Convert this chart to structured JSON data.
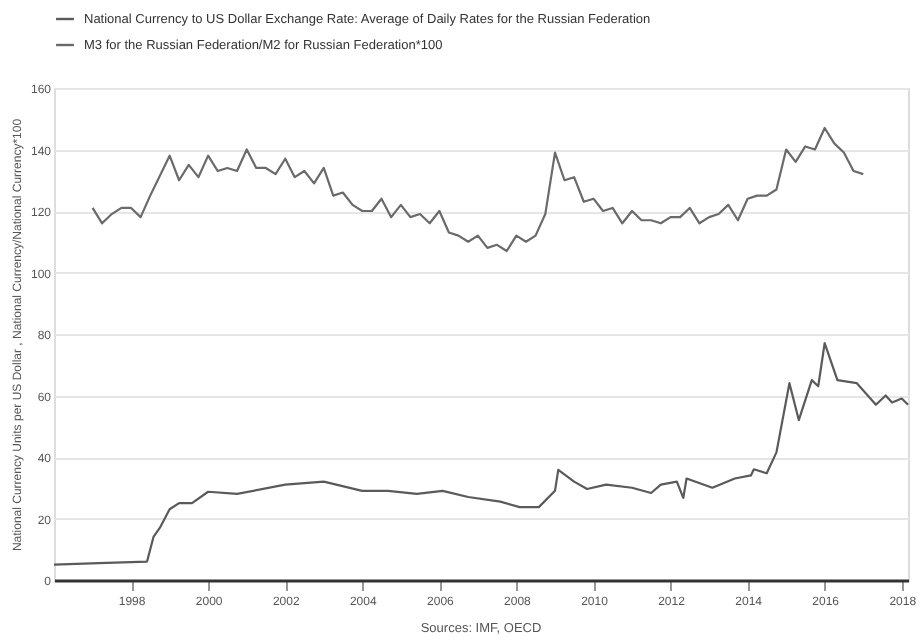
{
  "chart_data": {
    "type": "line",
    "ylabel": "National Currency Units per US Dollar , National Currency/National Currency*100",
    "annotations": [
      "Sources: IMF, OECD"
    ],
    "xlim": [
      "1996-01",
      "2018-03"
    ],
    "xticks": [
      "1998",
      "2000",
      "2002",
      "2004",
      "2006",
      "2008",
      "2010",
      "2012",
      "2014",
      "2016",
      "2018"
    ],
    "ylim": [
      0,
      160
    ],
    "yticks": [
      0,
      20,
      40,
      60,
      80,
      100,
      120,
      140,
      160
    ],
    "grid": "y",
    "legend": "top left",
    "marker": "none",
    "line_style": "solid",
    "series": [
      {
        "name": "National Currency to US Dollar Exchange Rate: Average of Daily Rates for the Russian Federation",
        "color": "#5a5a5a",
        "x": [
          "1996-01",
          "1997-03",
          "1998-06",
          "1998-08",
          "1998-10",
          "1999-01",
          "1999-04",
          "1999-08",
          "2000-01",
          "2000-10",
          "2002-01",
          "2003-01",
          "2004-01",
          "2004-09",
          "2005-06",
          "2006-02",
          "2006-10",
          "2007-08",
          "2008-02",
          "2008-08",
          "2009-01",
          "2009-02",
          "2009-07",
          "2009-11",
          "2010-05",
          "2011-01",
          "2011-07",
          "2011-10",
          "2012-03",
          "2012-05",
          "2012-06",
          "2013-02",
          "2013-09",
          "2014-02",
          "2014-03",
          "2014-07",
          "2014-10",
          "2015-02",
          "2015-05",
          "2015-09",
          "2015-11",
          "2016-01",
          "2016-05",
          "2016-11",
          "2017-05",
          "2017-08",
          "2017-10",
          "2018-01",
          "2018-03"
        ],
        "values": [
          5,
          5.5,
          6,
          14,
          17,
          23,
          25,
          25,
          28.7,
          28,
          31,
          32,
          29,
          29,
          28,
          29,
          27,
          25.5,
          23.7,
          23.7,
          29,
          35.8,
          32,
          29.6,
          31,
          30,
          28.3,
          31,
          32,
          26.7,
          33,
          30,
          33,
          34,
          36,
          34.7,
          41.5,
          64,
          52,
          65,
          63,
          77,
          65,
          64,
          57,
          60,
          57.7,
          59,
          57
        ]
      },
      {
        "name": "M3 for the Russian Federation/M2 for Russian Federation*100",
        "color": "#6a6a6a",
        "x": [
          "1997-01",
          "1997-04",
          "1997-07",
          "1997-10",
          "1998-01",
          "1998-04",
          "1998-07",
          "1999-01",
          "1999-04",
          "1999-07",
          "1999-10",
          "2000-01",
          "2000-04",
          "2000-07",
          "2000-10",
          "2001-01",
          "2001-04",
          "2001-07",
          "2001-10",
          "2002-01",
          "2002-04",
          "2002-07",
          "2002-10",
          "2003-01",
          "2003-04",
          "2003-07",
          "2003-10",
          "2004-01",
          "2004-04",
          "2004-07",
          "2004-10",
          "2005-01",
          "2005-04",
          "2005-07",
          "2005-10",
          "2006-01",
          "2006-04",
          "2006-07",
          "2006-10",
          "2007-01",
          "2007-04",
          "2007-07",
          "2007-10",
          "2008-01",
          "2008-04",
          "2008-07",
          "2008-10",
          "2009-01",
          "2009-04",
          "2009-07",
          "2009-10",
          "2010-01",
          "2010-04",
          "2010-07",
          "2010-10",
          "2011-01",
          "2011-04",
          "2011-07",
          "2011-10",
          "2012-01",
          "2012-04",
          "2012-07",
          "2012-10",
          "2013-01",
          "2013-04",
          "2013-07",
          "2013-10",
          "2014-01",
          "2014-04",
          "2014-07",
          "2014-10",
          "2015-01",
          "2015-04",
          "2015-07",
          "2015-10",
          "2016-01",
          "2016-04",
          "2016-07",
          "2016-10",
          "2017-01"
        ],
        "values": [
          121,
          116,
          119,
          121,
          121,
          118,
          125,
          138,
          130,
          135,
          131,
          138,
          133,
          134,
          133,
          140,
          134,
          134,
          132,
          137,
          131,
          133,
          129,
          134,
          125,
          126,
          122,
          120,
          120,
          124,
          118,
          122,
          118,
          119,
          116,
          120,
          113,
          112,
          110,
          112,
          108,
          109,
          107,
          112,
          110,
          112,
          119,
          139,
          130,
          131,
          123,
          124,
          120,
          121,
          116,
          120,
          117,
          117,
          116,
          118,
          118,
          121,
          116,
          118,
          119,
          122,
          117,
          124,
          125,
          125,
          127,
          140,
          136,
          141,
          140,
          147,
          142,
          139,
          133,
          132
        ]
      }
    ]
  }
}
